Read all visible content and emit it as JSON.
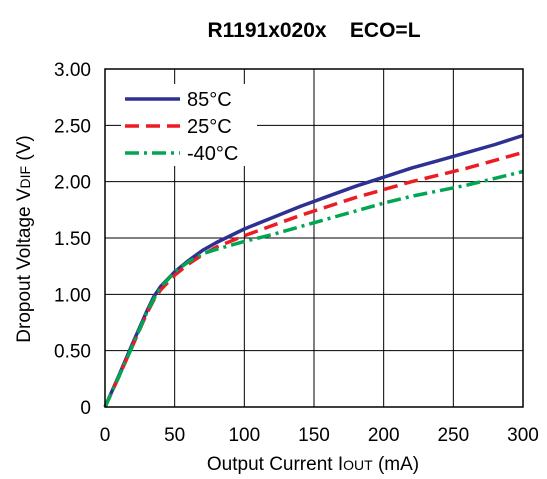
{
  "chart_data": {
    "type": "line",
    "title": "R1191x020x    ECO=L",
    "xlabel": {
      "main": "Output Current I",
      "sub": "OUT",
      "unit": " (mA)"
    },
    "ylabel": {
      "main": "Dropout Voltage V",
      "sub": "DIF",
      "unit": " (V)"
    },
    "xlim": [
      0,
      300
    ],
    "ylim": [
      0,
      3.0
    ],
    "x_ticks": [
      0,
      50,
      100,
      150,
      200,
      250,
      300
    ],
    "x_tick_labels": [
      "0",
      "50",
      "100",
      "150",
      "200",
      "250",
      "300"
    ],
    "y_ticks": [
      0,
      0.5,
      1.0,
      1.5,
      2.0,
      2.5,
      3.0
    ],
    "y_tick_labels": [
      "0",
      "0.50",
      "1.00",
      "1.50",
      "2.00",
      "2.50",
      "3.00"
    ],
    "grid": true,
    "legend_position": "top-left",
    "series": [
      {
        "name": "85°C",
        "color": "#2e3192",
        "dash": "solid",
        "points": [
          [
            0,
            0
          ],
          [
            10,
            0.28
          ],
          [
            20,
            0.57
          ],
          [
            30,
            0.85
          ],
          [
            35,
            0.98
          ],
          [
            40,
            1.07
          ],
          [
            50,
            1.2
          ],
          [
            60,
            1.3
          ],
          [
            70,
            1.39
          ],
          [
            80,
            1.46
          ],
          [
            100,
            1.58
          ],
          [
            120,
            1.68
          ],
          [
            140,
            1.78
          ],
          [
            160,
            1.87
          ],
          [
            180,
            1.96
          ],
          [
            200,
            2.04
          ],
          [
            220,
            2.12
          ],
          [
            240,
            2.19
          ],
          [
            260,
            2.26
          ],
          [
            280,
            2.33
          ],
          [
            300,
            2.41
          ]
        ]
      },
      {
        "name": "25°C",
        "color": "#ed1c24",
        "dash": "dashed",
        "points": [
          [
            0,
            0
          ],
          [
            10,
            0.27
          ],
          [
            20,
            0.55
          ],
          [
            30,
            0.83
          ],
          [
            35,
            0.95
          ],
          [
            40,
            1.04
          ],
          [
            50,
            1.17
          ],
          [
            60,
            1.27
          ],
          [
            70,
            1.35
          ],
          [
            80,
            1.42
          ],
          [
            100,
            1.52
          ],
          [
            120,
            1.61
          ],
          [
            140,
            1.7
          ],
          [
            160,
            1.78
          ],
          [
            180,
            1.86
          ],
          [
            200,
            1.93
          ],
          [
            220,
            2.0
          ],
          [
            240,
            2.06
          ],
          [
            260,
            2.12
          ],
          [
            280,
            2.19
          ],
          [
            300,
            2.26
          ]
        ]
      },
      {
        "name": "-40°C",
        "color": "#00a651",
        "dash": "dashdot",
        "points": [
          [
            0,
            0
          ],
          [
            10,
            0.27
          ],
          [
            20,
            0.55
          ],
          [
            30,
            0.84
          ],
          [
            35,
            0.96
          ],
          [
            40,
            1.06
          ],
          [
            50,
            1.2
          ],
          [
            60,
            1.29
          ],
          [
            70,
            1.36
          ],
          [
            80,
            1.4
          ],
          [
            100,
            1.47
          ],
          [
            120,
            1.53
          ],
          [
            140,
            1.6
          ],
          [
            160,
            1.67
          ],
          [
            180,
            1.74
          ],
          [
            200,
            1.81
          ],
          [
            220,
            1.87
          ],
          [
            240,
            1.92
          ],
          [
            260,
            1.97
          ],
          [
            280,
            2.03
          ],
          [
            300,
            2.09
          ]
        ]
      }
    ]
  }
}
